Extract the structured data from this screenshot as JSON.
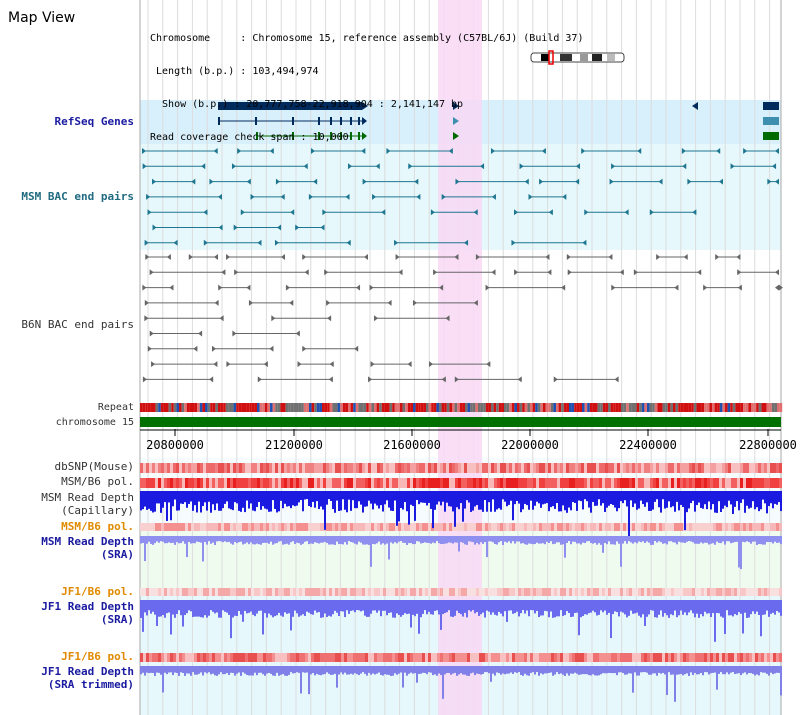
{
  "panel_title": "Map View",
  "info": {
    "lines": [
      "Chromosome     : Chromosome 15, reference assembly (C57BL/6J) (Build 37)",
      " Length (b.p.) : 103,494,974",
      "  Show (b.p.) : 20,777,758-22,918,904 : 2,141,147 bp",
      "Read coverage check span : 10,000"
    ]
  },
  "tracks": {
    "refseq": "RefSeq Genes",
    "msm_bac": "MSM BAC end pairs",
    "b6n_bac": "B6N BAC end pairs",
    "repeat": "Repeat",
    "chromosome": "chromosome 15",
    "dbsnp": "dbSNP(Mouse)",
    "msm_b6_pol_1": "MSM/B6 pol.",
    "msm_depth_cap_1": "MSM Read Depth",
    "msm_depth_cap_2": "(Capillary)",
    "msm_b6_pol_2": "MSM/B6 pol.",
    "msm_depth_sra_1": "MSM Read Depth",
    "msm_depth_sra_2": "(SRA)",
    "jf1_b6_pol_1": "JF1/B6 pol.",
    "jf1_depth_sra_1": "JF1 Read Depth",
    "jf1_depth_sra_2": "(SRA)",
    "jf1_b6_pol_2": "JF1/B6 pol.",
    "jf1_depth_trim_1": "JF1 Read Depth",
    "jf1_depth_trim_2": "(SRA trimmed)"
  },
  "axis": {
    "ticks": [
      "20800000",
      "21200000",
      "21600000",
      "22000000",
      "22400000",
      "22800000"
    ]
  },
  "colors": {
    "highlight": "#f8d8f4",
    "refseq_bg": "#d8f0fb",
    "bac_bg": "#e6f8fb",
    "chromosome": "#007000",
    "gene_navy": "#002a5c",
    "gene_teal": "#3d8fb0",
    "gene_green": "#006a00"
  }
}
